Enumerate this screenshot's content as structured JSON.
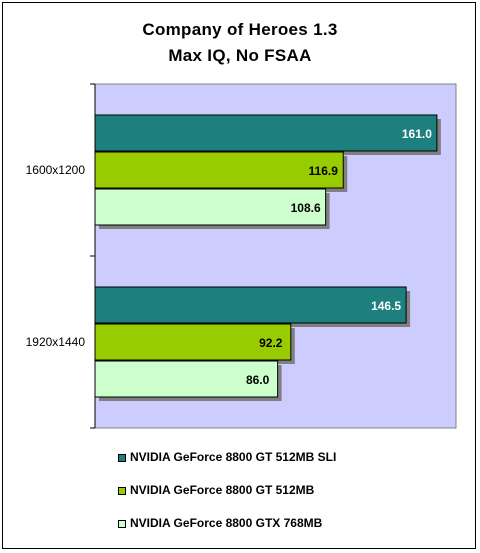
{
  "chart_data": {
    "type": "bar",
    "orientation": "horizontal",
    "title": "Company of Heroes 1.3",
    "subtitle": "Max IQ, No FSAA",
    "categories": [
      "1600x1200",
      "1920x1440"
    ],
    "series": [
      {
        "name": "NVIDIA GeForce 8800 GT 512MB SLI",
        "values": [
          161.0,
          146.5
        ],
        "color": "#1e7f7f",
        "label_color": "#ffffff"
      },
      {
        "name": "NVIDIA GeForce 8800 GT 512MB",
        "values": [
          116.9,
          92.2
        ],
        "color": "#99cc00",
        "label_color": "#000000"
      },
      {
        "name": "NVIDIA GeForce 8800 GTX 768MB",
        "values": [
          108.6,
          86.0
        ],
        "color": "#ccffcc",
        "label_color": "#000000"
      }
    ],
    "xlim": [
      0,
      170
    ],
    "grid": false,
    "legend_position": "bottom",
    "plot_background": "#ccccff"
  }
}
